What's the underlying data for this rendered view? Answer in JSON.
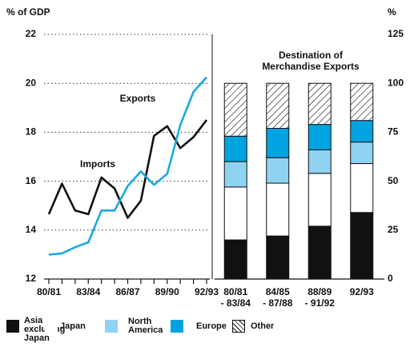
{
  "chart_data": [
    {
      "type": "line",
      "ylabel": "% of GDP",
      "categories": [
        "80/81",
        null,
        null,
        "83/84",
        null,
        null,
        "86/87",
        null,
        null,
        "89/90",
        null,
        null,
        "92/93"
      ],
      "series": [
        {
          "name": "Imports",
          "color": "#111111",
          "values": [
            14.65,
            15.9,
            14.8,
            14.65,
            16.15,
            15.7,
            14.5,
            15.2,
            17.85,
            18.25,
            17.35,
            17.8,
            18.5
          ]
        },
        {
          "name": "Exports",
          "color": "#1aa9e1",
          "values": [
            13.0,
            13.05,
            13.3,
            13.5,
            14.8,
            14.8,
            15.8,
            16.4,
            15.85,
            16.3,
            18.3,
            19.65,
            20.25
          ]
        }
      ],
      "ylim": [
        12,
        22
      ],
      "yticks": [
        12,
        14,
        16,
        18,
        20,
        22
      ],
      "grid": true
    },
    {
      "type": "bar",
      "stacked": true,
      "title": "Destination of Merchandise Exports",
      "ylabel": "%",
      "categories": [
        [
          "80/81",
          "- 83/84"
        ],
        [
          "84/85",
          "- 87/88"
        ],
        [
          "88/89",
          "- 91/92"
        ],
        [
          "92/93"
        ]
      ],
      "series": [
        {
          "name": "Asia excluding Japan",
          "color": "#111111",
          "values": [
            20,
            22,
            27,
            34
          ]
        },
        {
          "name": "Japan",
          "color": "#ffffff",
          "values": [
            27,
            27,
            27,
            25
          ]
        },
        {
          "name": "North America",
          "color": "#8fd3f0",
          "values": [
            13,
            13,
            12,
            11
          ]
        },
        {
          "name": "Europe",
          "color": "#00a3e0",
          "values": [
            13,
            15,
            13,
            11
          ]
        },
        {
          "name": "Other",
          "color": "#000000",
          "pattern": "hatch",
          "values": [
            27,
            23,
            21,
            19
          ]
        }
      ],
      "ylim": [
        0,
        125
      ],
      "yticks": [
        0,
        25,
        50,
        75,
        100,
        125
      ]
    }
  ]
}
